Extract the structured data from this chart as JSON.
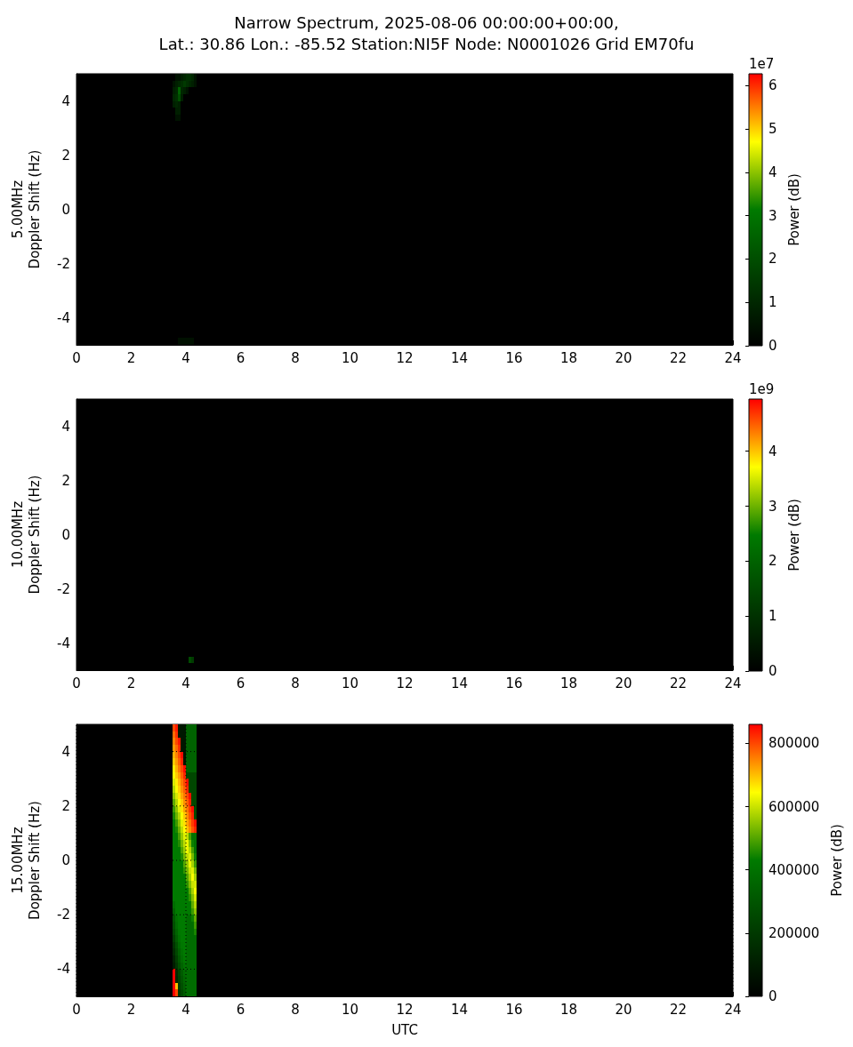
{
  "chart_data": [
    {
      "type": "heatmap",
      "title": "Narrow Spectrum, 2025-08-06 00:00:00+00:00,\nLat.: 30.86 Lon.: -85.52 Station:NI5F Node: N0001026 Grid EM70fu",
      "ylabel": "5.00MHz\nDoppler Shift (Hz)",
      "clabel": "Power (dB)",
      "annotations": [
        "1e7"
      ],
      "x": [
        3.55,
        3.65,
        3.75,
        3.85,
        3.95,
        4.05,
        4.15,
        4.25,
        4.35
      ],
      "cells": [
        [
          0,
          0.5,
          0.5,
          0.8,
          1,
          1.2,
          1.2,
          1,
          0.5
        ],
        [
          0.5,
          0.8,
          1,
          1.2,
          1.5,
          1.2,
          1,
          0.8,
          0.5
        ],
        [
          0.8,
          1,
          2.5,
          1,
          0.8,
          0.5,
          0,
          0,
          0
        ],
        [
          1,
          1.2,
          2,
          0.8,
          0,
          0,
          0,
          0,
          0
        ],
        [
          0.8,
          1,
          0.8,
          0,
          0,
          0,
          0,
          0,
          0
        ],
        [
          0,
          0.8,
          0.8,
          0,
          0,
          0,
          0,
          0,
          0
        ],
        [
          0,
          0.5,
          0.5,
          0,
          0,
          0,
          0,
          0,
          0
        ],
        [
          0,
          0,
          0,
          0,
          0,
          0,
          0,
          0,
          0
        ],
        [
          0,
          0,
          0,
          0,
          0,
          0,
          0,
          0,
          0
        ],
        [
          0,
          0,
          0,
          0,
          0,
          0,
          0,
          0,
          0
        ],
        [
          0,
          0,
          0,
          0,
          0,
          0,
          0,
          0,
          0
        ],
        [
          0,
          0,
          0,
          0,
          0,
          0,
          0,
          0,
          0
        ],
        [
          0,
          0,
          0,
          0,
          0,
          0,
          0,
          0,
          0
        ],
        [
          0,
          0,
          0,
          0,
          0,
          0,
          0,
          0,
          0
        ],
        [
          0,
          0,
          0,
          0,
          0,
          0,
          0,
          0,
          0
        ],
        [
          0,
          0,
          0,
          0,
          0,
          0,
          0,
          0,
          0
        ],
        [
          0,
          0,
          0,
          0,
          0,
          0,
          0,
          0,
          0
        ],
        [
          0,
          0,
          0,
          0,
          0,
          0,
          0,
          0,
          0
        ],
        [
          0,
          0,
          0,
          0,
          0,
          0,
          0,
          0,
          0
        ],
        [
          0,
          0,
          0,
          0,
          0,
          0,
          0,
          0,
          0
        ],
        [
          0,
          0,
          0,
          0,
          0,
          0,
          0,
          0,
          0
        ],
        [
          0,
          0,
          0,
          0,
          0,
          0,
          0,
          0,
          0
        ],
        [
          0,
          0,
          0,
          0,
          0,
          0,
          0,
          0,
          0
        ],
        [
          0,
          0,
          0,
          0,
          0,
          0,
          0,
          0,
          0
        ],
        [
          0,
          0,
          0,
          0,
          0,
          0,
          0,
          0,
          0
        ],
        [
          0,
          0,
          0,
          0,
          0,
          0,
          0,
          0,
          0
        ],
        [
          0,
          0,
          0,
          0,
          0,
          0,
          0,
          0,
          0
        ],
        [
          0,
          0,
          0,
          0,
          0,
          0,
          0,
          0,
          0
        ],
        [
          0,
          0,
          0,
          0,
          0,
          0,
          0,
          0,
          0
        ],
        [
          0,
          0,
          0,
          0,
          0,
          0,
          0,
          0,
          0
        ],
        [
          0,
          0,
          0,
          0,
          0,
          0,
          0,
          0,
          0
        ],
        [
          0,
          0,
          0,
          0,
          0,
          0,
          0,
          0,
          0
        ],
        [
          0,
          0,
          0,
          0,
          0,
          0,
          0,
          0,
          0
        ],
        [
          0,
          0,
          0,
          0,
          0,
          0,
          0,
          0,
          0
        ],
        [
          0,
          0,
          0,
          0,
          0,
          0,
          0,
          0,
          0
        ],
        [
          0,
          0,
          0,
          0,
          0,
          0,
          0,
          0,
          0
        ],
        [
          0,
          0,
          0,
          0,
          0,
          0,
          0,
          0,
          0
        ],
        [
          0,
          0,
          0,
          0,
          0,
          0,
          0,
          0,
          0
        ],
        [
          0,
          0,
          0,
          0,
          0,
          0,
          0,
          0,
          0
        ],
        [
          0,
          0,
          0.4,
          0.4,
          0.4,
          0.4,
          0.4,
          0.4,
          0
        ]
      ],
      "xlim": [
        0,
        24
      ],
      "xticks": [
        0,
        2,
        4,
        6,
        8,
        10,
        12,
        14,
        16,
        18,
        20,
        22,
        24
      ],
      "ylim": [
        -5,
        5
      ],
      "yticks": [
        -4,
        -2,
        0,
        2,
        4
      ],
      "clim": [
        0,
        6.27
      ],
      "cticks": [
        0,
        1,
        2,
        3,
        4,
        5,
        6
      ]
    },
    {
      "type": "heatmap",
      "ylabel": "10.00MHz\nDoppler Shift (Hz)",
      "clabel": "Power (dB)",
      "annotations": [
        "1e9"
      ],
      "x": [
        3.55,
        3.65,
        3.75,
        3.85,
        3.95,
        4.05,
        4.15,
        4.25,
        4.35
      ],
      "cells": [
        [
          0,
          0,
          0,
          0,
          0,
          0,
          0,
          0,
          0
        ],
        [
          0,
          0,
          0,
          0,
          0,
          0,
          0,
          0,
          0
        ],
        [
          0,
          0,
          0,
          0,
          0,
          0,
          0,
          0,
          0
        ],
        [
          0,
          0,
          0,
          0,
          0,
          0,
          0,
          0,
          0
        ],
        [
          0,
          0,
          0,
          0,
          0,
          0,
          0,
          0,
          0
        ],
        [
          0,
          0,
          0,
          0,
          0,
          0,
          0,
          0,
          0
        ],
        [
          0,
          0,
          0,
          0,
          0,
          0,
          0,
          0,
          0
        ],
        [
          0,
          0,
          0,
          0,
          0,
          0,
          0,
          0,
          0
        ],
        [
          0,
          0,
          0,
          0,
          0,
          0,
          0,
          0,
          0
        ],
        [
          0,
          0,
          0,
          0,
          0,
          0,
          0,
          0,
          0
        ],
        [
          0,
          0,
          0,
          0,
          0,
          0,
          0,
          0,
          0
        ],
        [
          0,
          0,
          0,
          0,
          0,
          0,
          0,
          0,
          0
        ],
        [
          0,
          0,
          0,
          0,
          0,
          0,
          0,
          0,
          0
        ],
        [
          0,
          0,
          0,
          0,
          0,
          0,
          0,
          0,
          0
        ],
        [
          0,
          0,
          0,
          0,
          0,
          0,
          0,
          0,
          0
        ],
        [
          0,
          0,
          0,
          0,
          0,
          0,
          0,
          0,
          0
        ],
        [
          0,
          0,
          0,
          0,
          0,
          0,
          0,
          0,
          0
        ],
        [
          0,
          0,
          0,
          0,
          0,
          0,
          0,
          0,
          0
        ],
        [
          0,
          0,
          0,
          0,
          0,
          0,
          0,
          0,
          0
        ],
        [
          0,
          0,
          0,
          0,
          0,
          0,
          0,
          0,
          0
        ],
        [
          0,
          0,
          0,
          0,
          0,
          0,
          0,
          0,
          0
        ],
        [
          0,
          0,
          0,
          0,
          0,
          0,
          0,
          0,
          0
        ],
        [
          0,
          0,
          0,
          0,
          0,
          0,
          0,
          0,
          0
        ],
        [
          0,
          0,
          0,
          0,
          0,
          0,
          0,
          0,
          0
        ],
        [
          0,
          0,
          0,
          0,
          0,
          0,
          0,
          0,
          0
        ],
        [
          0,
          0,
          0,
          0,
          0,
          0,
          0,
          0,
          0
        ],
        [
          0,
          0,
          0,
          0,
          0,
          0,
          0,
          0,
          0
        ],
        [
          0,
          0,
          0,
          0,
          0,
          0,
          0,
          0,
          0
        ],
        [
          0,
          0,
          0,
          0,
          0,
          0,
          0,
          0,
          0
        ],
        [
          0,
          0,
          0,
          0,
          0,
          0,
          0,
          0,
          0
        ],
        [
          0,
          0,
          0,
          0,
          0,
          0,
          0,
          0,
          0
        ],
        [
          0,
          0,
          0,
          0,
          0,
          0,
          0,
          0,
          0
        ],
        [
          0,
          0,
          0,
          0,
          0,
          0,
          0,
          0,
          0
        ],
        [
          0,
          0,
          0,
          0,
          0,
          0,
          0,
          0,
          0
        ],
        [
          0,
          0,
          0,
          0,
          0,
          0,
          0,
          0,
          0
        ],
        [
          0,
          0,
          0,
          0,
          0,
          0,
          0,
          0,
          0
        ],
        [
          0,
          0,
          0,
          0,
          0,
          0,
          0,
          0,
          0
        ],
        [
          0,
          0,
          0,
          0,
          0,
          0,
          0,
          0,
          0
        ],
        [
          0,
          0,
          0,
          0,
          0,
          0,
          1.5,
          1.2,
          0
        ],
        [
          0,
          0,
          0,
          0,
          0,
          0,
          0,
          0,
          0
        ]
      ],
      "xlim": [
        0,
        24
      ],
      "xticks": [
        0,
        2,
        4,
        6,
        8,
        10,
        12,
        14,
        16,
        18,
        20,
        22,
        24
      ],
      "ylim": [
        -5,
        5
      ],
      "yticks": [
        -4,
        -2,
        0,
        2,
        4
      ],
      "clim": [
        0,
        4.95
      ],
      "cticks": [
        0,
        1,
        2,
        3,
        4
      ]
    },
    {
      "type": "heatmap",
      "ylabel": "15.00MHz\nDoppler Shift (Hz)",
      "xlabel": "UTC",
      "clabel": "Power (dB)",
      "grid": true,
      "x": [
        3.55,
        3.65,
        3.75,
        3.85,
        3.95,
        4.05,
        4.15,
        4.25,
        4.35
      ],
      "cells": [
        [
          800000,
          840000,
          80000,
          80000,
          80000,
          350000,
          350000,
          350000,
          350000
        ],
        [
          770000,
          820000,
          80000,
          80000,
          80000,
          350000,
          350000,
          350000,
          350000
        ],
        [
          750000,
          800000,
          840000,
          80000,
          80000,
          350000,
          350000,
          350000,
          350000
        ],
        [
          730000,
          770000,
          820000,
          80000,
          80000,
          350000,
          350000,
          350000,
          350000
        ],
        [
          710000,
          750000,
          800000,
          850000,
          80000,
          350000,
          350000,
          350000,
          350000
        ],
        [
          690000,
          730000,
          780000,
          830000,
          80000,
          350000,
          350000,
          350000,
          350000
        ],
        [
          660000,
          710000,
          760000,
          800000,
          850000,
          350000,
          350000,
          350000,
          350000
        ],
        [
          640000,
          690000,
          730000,
          780000,
          830000,
          250000,
          250000,
          250000,
          250000
        ],
        [
          610000,
          660000,
          710000,
          760000,
          800000,
          850000,
          250000,
          250000,
          250000
        ],
        [
          580000,
          640000,
          690000,
          740000,
          780000,
          830000,
          250000,
          250000,
          250000
        ],
        [
          550000,
          610000,
          670000,
          720000,
          760000,
          800000,
          850000,
          250000,
          250000
        ],
        [
          510000,
          580000,
          640000,
          690000,
          740000,
          780000,
          830000,
          250000,
          250000
        ],
        [
          480000,
          550000,
          620000,
          670000,
          720000,
          760000,
          810000,
          850000,
          250000
        ],
        [
          450000,
          520000,
          580000,
          640000,
          690000,
          740000,
          790000,
          830000,
          250000
        ],
        [
          430000,
          480000,
          550000,
          620000,
          670000,
          720000,
          760000,
          810000,
          850000
        ],
        [
          430000,
          450000,
          520000,
          590000,
          650000,
          700000,
          740000,
          790000,
          830000
        ],
        [
          430000,
          430000,
          490000,
          560000,
          620000,
          590000,
          490000,
          400000,
          400000
        ],
        [
          430000,
          430000,
          460000,
          530000,
          590000,
          630000,
          540000,
          440000,
          400000
        ],
        [
          430000,
          430000,
          430000,
          500000,
          560000,
          630000,
          580000,
          490000,
          400000
        ],
        [
          430000,
          430000,
          430000,
          460000,
          530000,
          590000,
          620000,
          530000,
          440000
        ],
        [
          430000,
          430000,
          430000,
          430000,
          500000,
          560000,
          630000,
          570000,
          480000
        ],
        [
          430000,
          430000,
          430000,
          430000,
          470000,
          530000,
          600000,
          620000,
          530000
        ],
        [
          430000,
          430000,
          430000,
          430000,
          430000,
          500000,
          570000,
          640000,
          570000
        ],
        [
          430000,
          430000,
          430000,
          430000,
          430000,
          470000,
          540000,
          600000,
          610000
        ],
        [
          430000,
          430000,
          430000,
          430000,
          430000,
          430000,
          500000,
          570000,
          640000
        ],
        [
          430000,
          430000,
          430000,
          430000,
          430000,
          430000,
          470000,
          540000,
          610000
        ],
        [
          380000,
          430000,
          430000,
          430000,
          430000,
          430000,
          430000,
          510000,
          580000
        ],
        [
          340000,
          430000,
          430000,
          430000,
          430000,
          430000,
          430000,
          480000,
          550000
        ],
        [
          300000,
          400000,
          430000,
          430000,
          430000,
          380000,
          380000,
          440000,
          510000
        ],
        [
          280000,
          380000,
          430000,
          430000,
          430000,
          380000,
          380000,
          380000,
          480000
        ],
        [
          250000,
          350000,
          420000,
          430000,
          430000,
          380000,
          380000,
          380000,
          450000
        ],
        [
          220000,
          320000,
          400000,
          430000,
          430000,
          380000,
          380000,
          380000,
          380000
        ],
        [
          180000,
          280000,
          370000,
          420000,
          430000,
          380000,
          380000,
          380000,
          380000
        ],
        [
          150000,
          250000,
          340000,
          400000,
          430000,
          380000,
          380000,
          380000,
          380000
        ],
        [
          120000,
          220000,
          310000,
          380000,
          420000,
          380000,
          380000,
          380000,
          380000
        ],
        [
          100000,
          190000,
          280000,
          350000,
          400000,
          380000,
          380000,
          380000,
          380000
        ],
        [
          860000,
          160000,
          250000,
          320000,
          380000,
          380000,
          380000,
          380000,
          380000
        ],
        [
          860000,
          140000,
          230000,
          300000,
          360000,
          380000,
          380000,
          380000,
          380000
        ],
        [
          860000,
          700000,
          210000,
          280000,
          340000,
          380000,
          380000,
          380000,
          380000
        ],
        [
          860000,
          800000,
          200000,
          260000,
          320000,
          380000,
          380000,
          380000,
          380000
        ]
      ],
      "xlim": [
        0,
        24
      ],
      "xticks": [
        0,
        2,
        4,
        6,
        8,
        10,
        12,
        14,
        16,
        18,
        20,
        22,
        24
      ],
      "ylim": [
        -5,
        5
      ],
      "yticks": [
        -4,
        -2,
        0,
        2,
        4
      ],
      "clim": [
        0,
        860000
      ],
      "cticks": [
        0,
        200000,
        400000,
        600000,
        800000
      ]
    }
  ]
}
